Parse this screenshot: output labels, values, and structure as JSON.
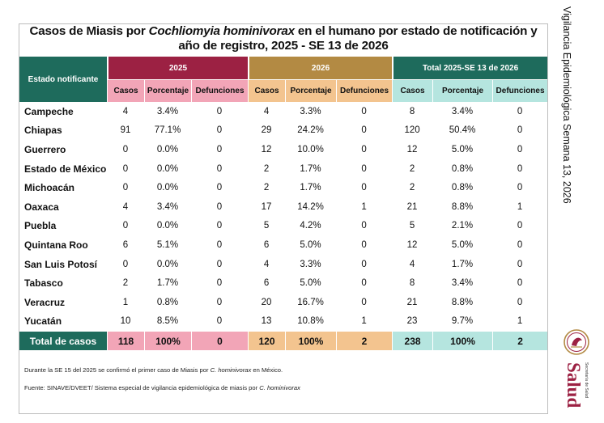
{
  "title": {
    "part1": "Casos de Miasis por ",
    "species": "Cochliomyia hominivorax",
    "part2": " en el humano por estado de notificación y año de registro, 2025 - SE 13 de 2026"
  },
  "side_label": "Vigilancia Epidemiológica Semana 13, 2026",
  "logo": {
    "name": "Salud",
    "subtitle": "Secretaría de Salud"
  },
  "colors": {
    "y2025_dark": "#9c2143",
    "y2025_light": "#f2a5b7",
    "y2026_dark": "#b38a43",
    "y2026_light": "#f3c48f",
    "total_dark": "#1e6b5c",
    "total_light": "#b5e5df"
  },
  "table": {
    "state_header": "Estado notificante",
    "groups": [
      "2025",
      "2026",
      "Total  2025-SE 13 de 2026"
    ],
    "subheaders": [
      "Casos",
      "Porcentaje",
      "Defunciones",
      "Casos",
      "Porcentaje",
      "Defunciones",
      "Casos",
      "Porcentaje",
      "Defunciones"
    ],
    "rows": [
      [
        "Campeche",
        "4",
        "3.4%",
        "0",
        "4",
        "3.3%",
        "0",
        "8",
        "3.4%",
        "0"
      ],
      [
        "Chiapas",
        "91",
        "77.1%",
        "0",
        "29",
        "24.2%",
        "0",
        "120",
        "50.4%",
        "0"
      ],
      [
        "Guerrero",
        "0",
        "0.0%",
        "0",
        "12",
        "10.0%",
        "0",
        "12",
        "5.0%",
        "0"
      ],
      [
        "Estado de México",
        "0",
        "0.0%",
        "0",
        "2",
        "1.7%",
        "0",
        "2",
        "0.8%",
        "0"
      ],
      [
        "Michoacán",
        "0",
        "0.0%",
        "0",
        "2",
        "1.7%",
        "0",
        "2",
        "0.8%",
        "0"
      ],
      [
        "Oaxaca",
        "4",
        "3.4%",
        "0",
        "17",
        "14.2%",
        "1",
        "21",
        "8.8%",
        "1"
      ],
      [
        "Puebla",
        "0",
        "0.0%",
        "0",
        "5",
        "4.2%",
        "0",
        "5",
        "2.1%",
        "0"
      ],
      [
        "Quintana Roo",
        "6",
        "5.1%",
        "0",
        "6",
        "5.0%",
        "0",
        "12",
        "5.0%",
        "0"
      ],
      [
        "San Luis Potosí",
        "0",
        "0.0%",
        "0",
        "4",
        "3.3%",
        "0",
        "4",
        "1.7%",
        "0"
      ],
      [
        "Tabasco",
        "2",
        "1.7%",
        "0",
        "6",
        "5.0%",
        "0",
        "8",
        "3.4%",
        "0"
      ],
      [
        "Veracruz",
        "1",
        "0.8%",
        "0",
        "20",
        "16.7%",
        "0",
        "21",
        "8.8%",
        "0"
      ],
      [
        "Yucatán",
        "10",
        "8.5%",
        "0",
        "13",
        "10.8%",
        "1",
        "23",
        "9.7%",
        "1"
      ]
    ],
    "total": [
      "Total de casos",
      "118",
      "100%",
      "0",
      "120",
      "100%",
      "2",
      "238",
      "100%",
      "2"
    ]
  },
  "notes": {
    "note1_a": "Durante la SE 15 del 2025 se confirmó el primer caso de Miasis por ",
    "note1_species": "C. hominivorax",
    "note1_b": " en México.",
    "note2_a": "Fuente: SINAVE/DVEET/ Sistema especial de vigilancia epidemiológica de miasis por ",
    "note2_species": "C. hominivorax"
  }
}
